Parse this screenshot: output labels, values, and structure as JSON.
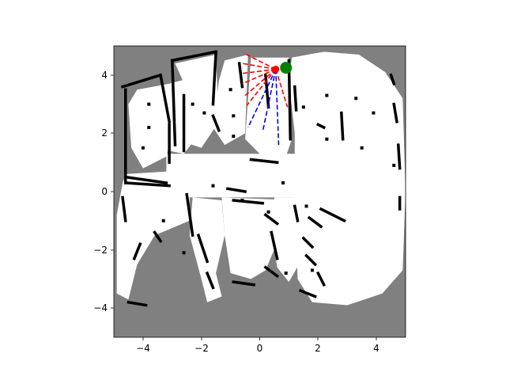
{
  "chart_data": {
    "type": "occupancy-grid map with robot pose and range rays",
    "xlim": [
      -5,
      5
    ],
    "ylim": [
      -5,
      5
    ],
    "xticks": [
      -4,
      -2,
      0,
      2,
      4
    ],
    "yticks": [
      -4,
      -2,
      0,
      2,
      4
    ],
    "xtick_labels": [
      "−4",
      "−2",
      "0",
      "2",
      "4"
    ],
    "ytick_labels": [
      "−4",
      "−2",
      "0",
      "2",
      "4"
    ],
    "grid": false,
    "colors": {
      "unknown": "#808080",
      "free": "#ffffff",
      "occupied": "#000000",
      "ray_near": "#ff0000",
      "ray_far": "#0000ff",
      "robot": "#ff0000",
      "goal": "#008000"
    },
    "robot": {
      "x": 0.55,
      "y": 4.2
    },
    "goal": {
      "x": 0.9,
      "y": 4.25
    },
    "rays_red": [
      {
        "x": -0.55,
        "y": 4.75
      },
      {
        "x": -0.6,
        "y": 4.4
      },
      {
        "x": -0.65,
        "y": 4.05
      },
      {
        "x": -0.6,
        "y": 3.7
      },
      {
        "x": -0.5,
        "y": 3.3
      },
      {
        "x": -0.45,
        "y": 2.95
      },
      {
        "x": 0.95,
        "y": 2.9
      }
    ],
    "rays_blue": [
      {
        "x": -0.4,
        "y": 2.2
      },
      {
        "x": 0.1,
        "y": 2.05
      },
      {
        "x": 0.65,
        "y": 1.6
      }
    ],
    "free_polygons": [
      [
        [
          1.1,
          4.6
        ],
        [
          2.2,
          4.8
        ],
        [
          3.4,
          4.7
        ],
        [
          4.3,
          4.1
        ],
        [
          4.9,
          3.2
        ],
        [
          5.0,
          0.0
        ],
        [
          4.9,
          -2.7
        ],
        [
          4.2,
          -3.5
        ],
        [
          3.0,
          -3.9
        ],
        [
          1.8,
          -3.8
        ],
        [
          1.3,
          -3.0
        ],
        [
          1.2,
          -0.5
        ],
        [
          1.2,
          2.0
        ],
        [
          1.0,
          3.8
        ]
      ],
      [
        [
          -4.2,
          3.5
        ],
        [
          -3.1,
          3.7
        ],
        [
          -3.0,
          2.0
        ],
        [
          -3.2,
          1.2
        ],
        [
          -4.0,
          0.8
        ],
        [
          -4.4,
          1.5
        ],
        [
          -4.5,
          3.0
        ]
      ],
      [
        [
          -3.1,
          3.7
        ],
        [
          -2.0,
          4.0
        ],
        [
          -1.9,
          2.2
        ],
        [
          -2.6,
          1.3
        ],
        [
          -3.1,
          1.4
        ]
      ],
      [
        [
          -2.9,
          4.4
        ],
        [
          -1.5,
          4.7
        ],
        [
          -1.4,
          2.4
        ],
        [
          -2.0,
          1.5
        ],
        [
          -2.6,
          1.7
        ],
        [
          -2.5,
          3.5
        ]
      ],
      [
        [
          -1.2,
          4.5
        ],
        [
          -0.4,
          4.7
        ],
        [
          -0.5,
          2.0
        ],
        [
          -1.2,
          1.6
        ],
        [
          -1.6,
          2.2
        ],
        [
          -1.4,
          3.8
        ]
      ],
      [
        [
          -0.3,
          4.6
        ],
        [
          1.0,
          4.6
        ],
        [
          1.1,
          1.8
        ],
        [
          0.9,
          1.2
        ],
        [
          0.0,
          1.3
        ],
        [
          -0.5,
          1.8
        ]
      ],
      [
        [
          -3.2,
          1.3
        ],
        [
          4.8,
          1.3
        ],
        [
          4.8,
          -0.2
        ],
        [
          -3.2,
          -0.2
        ]
      ],
      [
        [
          -4.6,
          0.6
        ],
        [
          -3.0,
          0.7
        ],
        [
          -2.4,
          -0.2
        ],
        [
          -2.4,
          -1.0
        ],
        [
          -3.6,
          -1.5
        ],
        [
          -4.2,
          -2.5
        ],
        [
          -4.5,
          -3.7
        ],
        [
          -4.9,
          -3.5
        ],
        [
          -4.9,
          -0.8
        ],
        [
          -4.7,
          0.3
        ]
      ],
      [
        [
          -2.3,
          -0.2
        ],
        [
          -1.3,
          -0.3
        ],
        [
          -1.2,
          -1.5
        ],
        [
          -1.5,
          -2.8
        ],
        [
          -1.3,
          -3.6
        ],
        [
          -1.8,
          -3.8
        ],
        [
          -2.0,
          -3.0
        ],
        [
          -2.4,
          -1.5
        ]
      ],
      [
        [
          -1.3,
          -0.2
        ],
        [
          1.3,
          -0.3
        ],
        [
          1.2,
          -1.0
        ],
        [
          0.7,
          -1.5
        ],
        [
          0.2,
          -2.7
        ],
        [
          -0.3,
          -3.0
        ],
        [
          -1.0,
          -2.8
        ],
        [
          -1.2,
          -1.5
        ]
      ],
      [
        [
          0.5,
          -0.2
        ],
        [
          1.3,
          -0.2
        ],
        [
          1.4,
          -2.4
        ],
        [
          1.0,
          -3.1
        ],
        [
          0.6,
          -2.6
        ],
        [
          0.4,
          -1.4
        ]
      ]
    ],
    "wall_segments": [
      [
        [
          -4.7,
          3.6
        ],
        [
          -3.4,
          4.0
        ]
      ],
      [
        [
          -4.6,
          3.5
        ],
        [
          -4.6,
          0.3
        ]
      ],
      [
        [
          -4.6,
          0.3
        ],
        [
          -3.1,
          0.2
        ]
      ],
      [
        [
          -3.4,
          4.0
        ],
        [
          -3.1,
          2.4
        ]
      ],
      [
        [
          -3.1,
          2.3
        ],
        [
          -3.1,
          1.0
        ]
      ],
      [
        [
          -3.0,
          4.5
        ],
        [
          -1.5,
          4.8
        ]
      ],
      [
        [
          -3.0,
          4.5
        ],
        [
          -2.9,
          1.6
        ]
      ],
      [
        [
          -1.5,
          4.8
        ],
        [
          -1.6,
          3.0
        ]
      ],
      [
        [
          -2.6,
          3.3
        ],
        [
          -2.6,
          1.4
        ]
      ],
      [
        [
          -1.6,
          2.6
        ],
        [
          -1.4,
          2.1
        ]
      ],
      [
        [
          -0.7,
          4.4
        ],
        [
          -0.6,
          3.6
        ]
      ],
      [
        [
          0.2,
          4.0
        ],
        [
          0.3,
          2.9
        ]
      ],
      [
        [
          1.0,
          4.5
        ],
        [
          1.05,
          1.8
        ]
      ],
      [
        [
          1.2,
          3.6
        ],
        [
          1.25,
          2.8
        ]
      ],
      [
        [
          4.5,
          4.0
        ],
        [
          4.6,
          3.7
        ]
      ],
      [
        [
          4.6,
          3.0
        ],
        [
          4.7,
          2.4
        ]
      ],
      [
        [
          4.75,
          1.6
        ],
        [
          4.8,
          0.8
        ]
      ],
      [
        [
          4.8,
          -0.2
        ],
        [
          4.8,
          -0.6
        ]
      ],
      [
        [
          2.8,
          2.7
        ],
        [
          2.85,
          1.8
        ]
      ],
      [
        [
          2.0,
          2.3
        ],
        [
          2.2,
          2.2
        ]
      ],
      [
        [
          -4.6,
          0.5
        ],
        [
          -3.2,
          0.3
        ]
      ],
      [
        [
          -4.7,
          -0.2
        ],
        [
          -4.6,
          -1.0
        ]
      ],
      [
        [
          -4.1,
          -1.8
        ],
        [
          -4.3,
          -2.3
        ]
      ],
      [
        [
          -4.5,
          -3.8
        ],
        [
          -3.9,
          -3.9
        ]
      ],
      [
        [
          -3.6,
          -1.4
        ],
        [
          -3.4,
          -1.7
        ]
      ],
      [
        [
          -2.5,
          -0.1
        ],
        [
          -2.3,
          -1.5
        ]
      ],
      [
        [
          -2.1,
          -1.5
        ],
        [
          -1.8,
          -2.4
        ]
      ],
      [
        [
          -1.8,
          -2.8
        ],
        [
          -1.6,
          -3.3
        ]
      ],
      [
        [
          -1.1,
          0.1
        ],
        [
          -0.5,
          0.0
        ]
      ],
      [
        [
          -0.9,
          -0.3
        ],
        [
          0.1,
          -0.4
        ]
      ],
      [
        [
          0.2,
          -0.8
        ],
        [
          0.6,
          -1.1
        ]
      ],
      [
        [
          0.4,
          -1.4
        ],
        [
          0.6,
          -2.3
        ]
      ],
      [
        [
          0.2,
          -2.6
        ],
        [
          0.6,
          -2.9
        ]
      ],
      [
        [
          -0.9,
          -3.1
        ],
        [
          -0.2,
          -3.2
        ]
      ],
      [
        [
          1.2,
          -0.5
        ],
        [
          1.3,
          -1.0
        ]
      ],
      [
        [
          1.5,
          -1.6
        ],
        [
          1.8,
          -1.9
        ]
      ],
      [
        [
          1.6,
          -2.2
        ],
        [
          1.9,
          -2.5
        ]
      ],
      [
        [
          2.0,
          -2.8
        ],
        [
          2.2,
          -3.2
        ]
      ],
      [
        [
          2.1,
          -0.6
        ],
        [
          2.9,
          -1.0
        ]
      ],
      [
        [
          1.7,
          -0.9
        ],
        [
          2.1,
          -1.2
        ]
      ],
      [
        [
          1.4,
          -3.4
        ],
        [
          1.9,
          -3.6
        ]
      ],
      [
        [
          -0.3,
          1.1
        ],
        [
          0.6,
          1.0
        ]
      ]
    ],
    "wall_dots": [
      [
        -4.0,
        1.5
      ],
      [
        -3.8,
        3.0
      ],
      [
        -2.3,
        3.0
      ],
      [
        -1.9,
        2.7
      ],
      [
        -1.0,
        3.5
      ],
      [
        -0.9,
        2.6
      ],
      [
        0.3,
        -0.7
      ],
      [
        1.8,
        -2.7
      ],
      [
        3.5,
        1.5
      ],
      [
        3.9,
        2.7
      ],
      [
        2.3,
        1.8
      ],
      [
        4.6,
        0.9
      ],
      [
        -3.3,
        -1.0
      ],
      [
        -2.6,
        -2.1
      ],
      [
        -0.6,
        -0.3
      ],
      [
        1.6,
        -0.5
      ],
      [
        -0.9,
        1.9
      ],
      [
        -3.8,
        2.2
      ],
      [
        2.3,
        3.3
      ],
      [
        3.3,
        3.2
      ],
      [
        0.9,
        -2.8
      ],
      [
        -1.6,
        0.2
      ],
      [
        0.8,
        0.3
      ],
      [
        1.5,
        2.9
      ]
    ]
  }
}
